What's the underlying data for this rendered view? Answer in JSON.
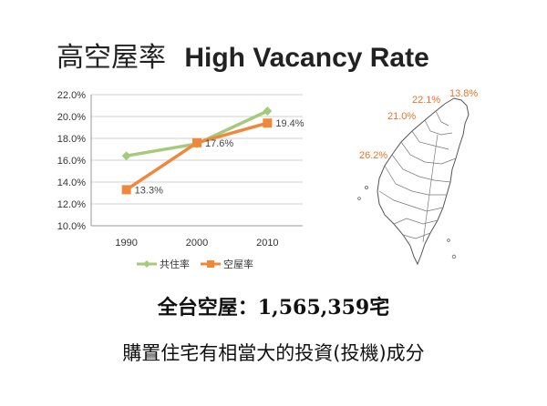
{
  "header": {
    "title_zh": "高空屋率",
    "title_en": "High Vacancy Rate"
  },
  "chart_data": {
    "type": "line",
    "categories": [
      "1990",
      "2000",
      "2010"
    ],
    "ylim": [
      10,
      22
    ],
    "yticks": [
      "10.0%",
      "12.0%",
      "14.0%",
      "16.0%",
      "18.0%",
      "20.0%",
      "22.0%"
    ],
    "series": [
      {
        "name": "共住率",
        "color": "#a6c97c",
        "marker": "diamond",
        "values": [
          16.4,
          17.5,
          20.5
        ],
        "labels": [
          "",
          "",
          ""
        ]
      },
      {
        "name": "空屋率",
        "color": "#f0883c",
        "marker": "square",
        "values": [
          13.3,
          17.6,
          19.4
        ],
        "labels": [
          "13.3%",
          "17.6%",
          "19.4%"
        ]
      }
    ],
    "legend_position": "bottom",
    "grid": true
  },
  "map": {
    "labels": [
      "22.1%",
      "13.8%",
      "21.0%",
      "26.2%"
    ],
    "label_color": "#e8742a"
  },
  "footer": {
    "stat": "全台空屋：1,565,359宅",
    "note": "購置住宅有相當大的投資(投機)成分"
  }
}
